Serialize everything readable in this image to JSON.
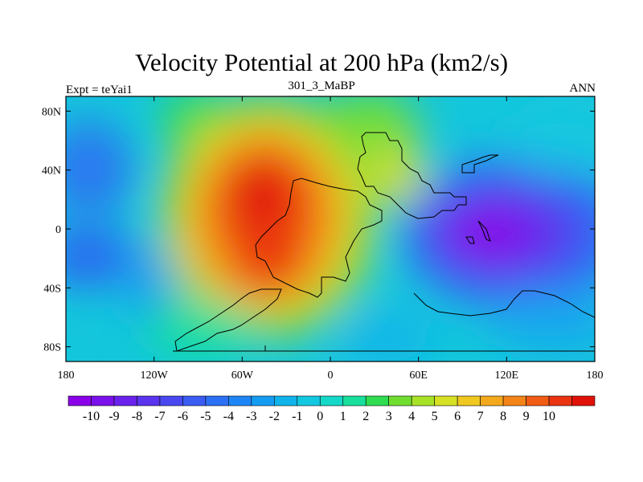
{
  "title": "Velocity Potential at 200 hPa (km2/s)",
  "left_label": "Expt = teYai1",
  "center_label": "301_3_MaBP",
  "right_label": "ANN",
  "map": {
    "lon_range": [
      -180,
      180
    ],
    "lat_range": [
      -90,
      90
    ],
    "lon_ticks": [
      {
        "value": -180,
        "label": "180"
      },
      {
        "value": -120,
        "label": "120W"
      },
      {
        "value": -60,
        "label": "60W"
      },
      {
        "value": 0,
        "label": "0"
      },
      {
        "value": 60,
        "label": "60E"
      },
      {
        "value": 120,
        "label": "120E"
      },
      {
        "value": 180,
        "label": "180"
      }
    ],
    "lat_ticks": [
      {
        "value": 80,
        "label": "80N"
      },
      {
        "value": 40,
        "label": "40N"
      },
      {
        "value": 0,
        "label": "0"
      },
      {
        "value": -40,
        "label": "40S"
      },
      {
        "value": -80,
        "label": "80S"
      }
    ],
    "maximum": {
      "lon": -35,
      "lat": 10,
      "value": 10
    },
    "minimum": {
      "lon": 105,
      "lat": 0,
      "value": -10
    }
  },
  "colorbar": {
    "labels": [
      "-10",
      "-9",
      "-8",
      "-7",
      "-6",
      "-5",
      "-4",
      "-3",
      "-2",
      "-1",
      "0",
      "1",
      "2",
      "3",
      "4",
      "5",
      "6",
      "7",
      "8",
      "9",
      "10"
    ],
    "colors": [
      "#8a00e8",
      "#7a10ea",
      "#6a22ec",
      "#5a34ee",
      "#4a48f0",
      "#3a5cf2",
      "#2c70f4",
      "#1e86f4",
      "#149cf2",
      "#10b4ea",
      "#12c8e0",
      "#14d8c8",
      "#18e09c",
      "#30dc50",
      "#70de30",
      "#a8e228",
      "#d6e024",
      "#f0c820",
      "#f4a81c",
      "#f48418",
      "#f05c14",
      "#ea3410",
      "#e01208"
    ]
  }
}
